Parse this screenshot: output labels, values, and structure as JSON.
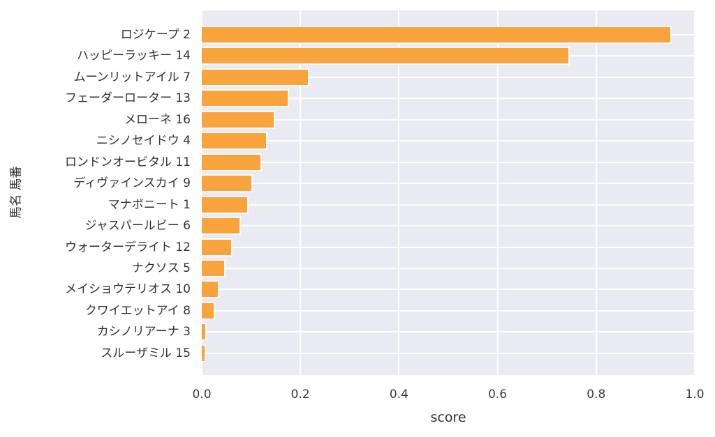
{
  "chart_data": {
    "type": "bar",
    "orientation": "horizontal",
    "title": "",
    "xlabel": "score",
    "ylabel": "馬名 馬番",
    "xlim": [
      0,
      1
    ],
    "xticks": [
      0.0,
      0.2,
      0.4,
      0.6,
      0.8,
      1.0
    ],
    "xtick_labels": [
      "0.0",
      "0.2",
      "0.4",
      "0.6",
      "0.8",
      "1.0"
    ],
    "grid": true,
    "legend_position": "none",
    "categories": [
      "ロジケープ 2",
      "ハッピーラッキー 14",
      "ムーンリットアイル 7",
      "フェーダーローター 13",
      "メローネ 16",
      "ニシノセイドウ 4",
      "ロンドンオービタル 11",
      "ディヴァインスカイ 9",
      "マナボニート 1",
      "ジャスパールビー 6",
      "ウォーターデライト 12",
      "ナクソス 5",
      "メイショウテリオス 10",
      "クワイエットアイ 8",
      "カシノリアーナ 3",
      "スルーザミル 15"
    ],
    "values": [
      0.95,
      0.744,
      0.216,
      0.174,
      0.146,
      0.13,
      0.119,
      0.101,
      0.092,
      0.077,
      0.06,
      0.046,
      0.033,
      0.024,
      0.007,
      0.006
    ],
    "colors": {
      "bar": "#f9a33c",
      "bar_edge": "#ffffff",
      "plot_background": "#eaeaf2",
      "grid": "#ffffff",
      "text": "#303030",
      "figure_background": "#ffffff"
    }
  }
}
